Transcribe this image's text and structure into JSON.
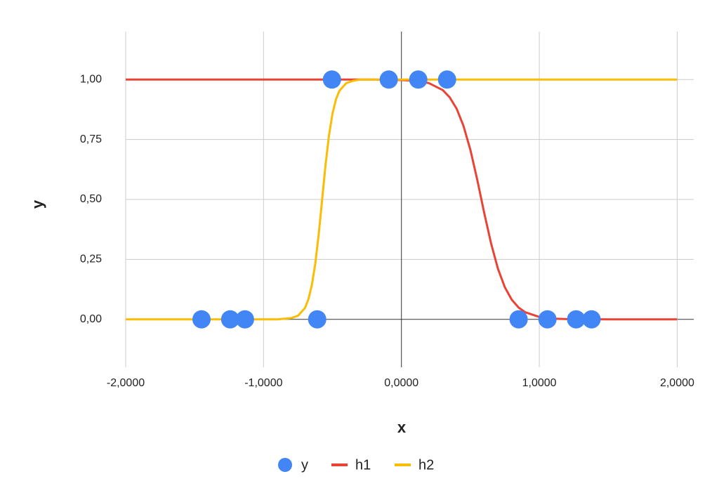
{
  "chart_data": {
    "type": "combo",
    "x_label": "x",
    "y_label": "y",
    "xlim": [
      -2,
      2.12
    ],
    "ylim": [
      -0.2,
      1.2
    ],
    "xticks": [
      {
        "value": -2,
        "label": "-2,0000"
      },
      {
        "value": -1,
        "label": "-1,0000"
      },
      {
        "value": 0,
        "label": "0,0000"
      },
      {
        "value": 1,
        "label": "1,0000"
      },
      {
        "value": 2,
        "label": "2,0000"
      }
    ],
    "yticks": [
      {
        "value": 0,
        "label": "0,00"
      },
      {
        "value": 0.25,
        "label": "0,25"
      },
      {
        "value": 0.5,
        "label": "0,50"
      },
      {
        "value": 0.75,
        "label": "0,75"
      },
      {
        "value": 1,
        "label": "1,00"
      }
    ],
    "grid": true,
    "series": [
      {
        "name": "y",
        "type": "scatter",
        "color": "#4285f4",
        "x": [
          -1.45,
          -1.242,
          -1.135,
          -0.611,
          -0.504,
          -0.092,
          0.122,
          0.331,
          0.85,
          1.059,
          1.267,
          1.379
        ],
        "values": [
          0,
          0,
          0,
          0,
          1,
          1,
          1,
          1,
          0,
          0,
          0,
          0
        ]
      },
      {
        "name": "h1",
        "type": "line",
        "color": "#ea4335",
        "x": [
          -2,
          -1.5,
          -1,
          -0.9,
          -0.8,
          -0.75,
          -0.7,
          -0.675,
          -0.65,
          -0.625,
          -0.6,
          -0.575,
          -0.55,
          -0.525,
          -0.5,
          -0.475,
          -0.45,
          -0.4,
          -0.35,
          -0.3,
          -0.2,
          0,
          0.1,
          0.2,
          0.3,
          0.35,
          0.4,
          0.45,
          0.5,
          0.55,
          0.6,
          0.65,
          0.7,
          0.75,
          0.8,
          0.85,
          0.9,
          1.0,
          1.1,
          1.2,
          1.5,
          2
        ],
        "values": [
          1,
          1,
          1,
          1,
          1,
          1,
          1,
          1,
          1,
          1,
          1,
          1,
          1,
          1,
          1,
          1,
          1,
          1,
          1,
          1,
          1,
          0.998,
          0.995,
          0.985,
          0.956,
          0.926,
          0.879,
          0.807,
          0.707,
          0.582,
          0.445,
          0.317,
          0.211,
          0.134,
          0.082,
          0.049,
          0.029,
          0.01,
          0.003,
          0.001,
          0,
          0
        ]
      },
      {
        "name": "h2",
        "type": "line",
        "color": "#fbbc04",
        "x": [
          -2,
          -1.5,
          -1,
          -0.9,
          -0.8,
          -0.75,
          -0.7,
          -0.675,
          -0.65,
          -0.625,
          -0.6,
          -0.575,
          -0.55,
          -0.525,
          -0.5,
          -0.475,
          -0.45,
          -0.4,
          -0.35,
          -0.3,
          -0.2,
          0,
          0.1,
          0.2,
          0.3,
          0.35,
          0.4,
          0.45,
          0.5,
          0.55,
          0.6,
          0.65,
          0.7,
          0.75,
          0.8,
          0.85,
          0.9,
          1.0,
          1.1,
          1.2,
          1.5,
          2
        ],
        "values": [
          0,
          0,
          0,
          0,
          0.005,
          0.015,
          0.047,
          0.083,
          0.142,
          0.231,
          0.354,
          0.5,
          0.646,
          0.769,
          0.858,
          0.917,
          0.953,
          0.985,
          0.995,
          1,
          1,
          1,
          1,
          1,
          1,
          1,
          1,
          1,
          1,
          1,
          1,
          1,
          1,
          1,
          1,
          1,
          1,
          1,
          1,
          1,
          1,
          1
        ]
      }
    ]
  }
}
